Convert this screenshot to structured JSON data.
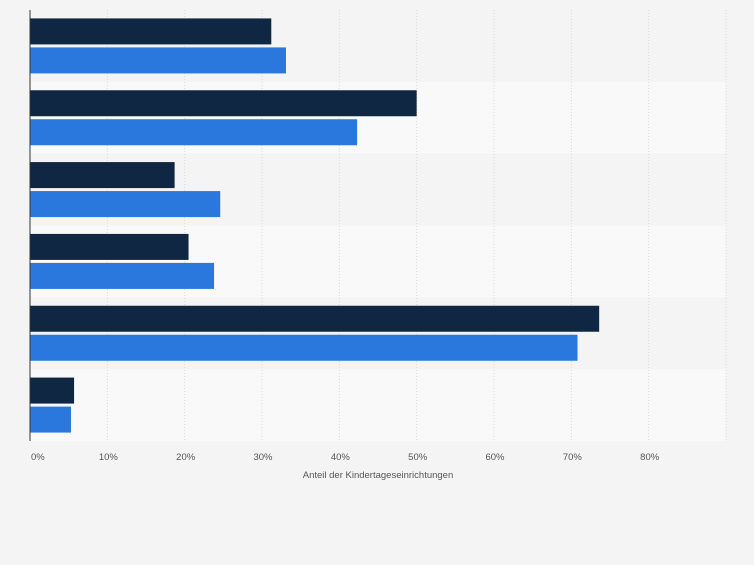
{
  "chart_data": {
    "type": "bar",
    "orientation": "horizontal",
    "categories": [
      "",
      "",
      "",
      "",
      "",
      ""
    ],
    "series": [
      {
        "values": [
          31.2,
          50.0,
          18.7,
          20.5,
          73.6,
          5.7
        ]
      },
      {
        "values": [
          33.1,
          42.3,
          24.6,
          23.8,
          70.8,
          5.3
        ]
      }
    ],
    "colors": [
      "#0f2742",
      "#2a78de"
    ],
    "xlim": [
      0,
      90
    ],
    "xticks": [
      "0%",
      "10%",
      "20%",
      "30%",
      "40%",
      "50%",
      "60%",
      "70%",
      "80%"
    ],
    "xlabel": "Anteil der Kindertageseinrichtungen",
    "grid": true,
    "band_colors": [
      "#f4f4f4",
      "#f9f9f9"
    ],
    "background": "#f4f4f4",
    "plot_background": "#f9f9f9"
  }
}
